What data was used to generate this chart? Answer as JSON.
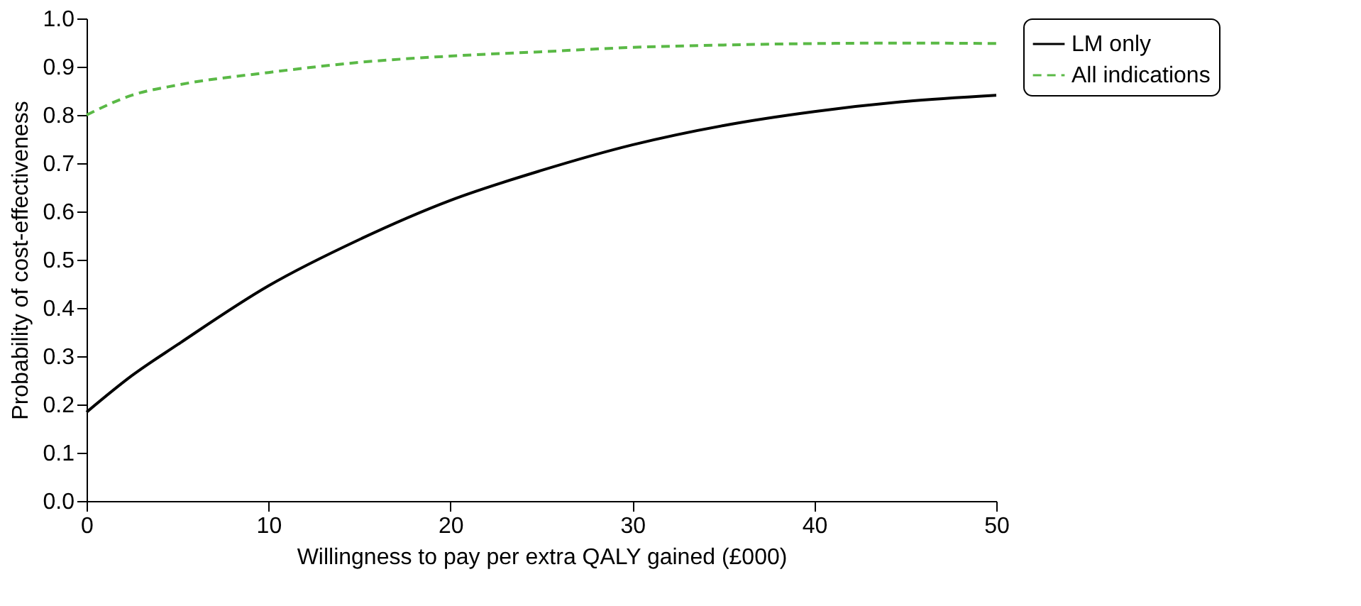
{
  "chart_data": {
    "type": "line",
    "xlabel": "Willingness to pay per extra QALY gained (£000)",
    "ylabel": "Probability of cost-effectiveness",
    "xlim": [
      0,
      50
    ],
    "xticks": [
      0,
      10,
      20,
      30,
      40,
      50
    ],
    "ylim": [
      0,
      1
    ],
    "yticks": [
      {
        "value": 0,
        "label": "0.0"
      },
      {
        "value": 0.1,
        "label": "0.1"
      },
      {
        "value": 0.2,
        "label": "0.2"
      },
      {
        "value": 0.3,
        "label": "0.3"
      },
      {
        "value": 0.4,
        "label": "0.4"
      },
      {
        "value": 0.5,
        "label": "0.5"
      },
      {
        "value": 0.6,
        "label": "0.6"
      },
      {
        "value": 0.7,
        "label": "0.7"
      },
      {
        "value": 0.8,
        "label": "0.8"
      },
      {
        "value": 0.9,
        "label": "0.9"
      },
      {
        "value": 1,
        "label": "1.0"
      }
    ],
    "grid": false,
    "legend": "right",
    "marker": "none",
    "series": [
      {
        "name": "LM only",
        "color": "#000000",
        "line_style": "solid",
        "x": [
          0,
          2.5,
          5,
          10,
          15,
          20,
          25,
          30,
          35,
          40,
          45,
          50
        ],
        "values": [
          0.184,
          0.26,
          0.324,
          0.446,
          0.542,
          0.623,
          0.685,
          0.738,
          0.778,
          0.807,
          0.828,
          0.841
        ]
      },
      {
        "name": "All indications",
        "color": "#5ab946",
        "line_style": "dashed",
        "x": [
          0,
          2.5,
          5,
          10,
          15,
          20,
          25,
          30,
          35,
          40,
          45,
          50
        ],
        "values": [
          0.8,
          0.841,
          0.862,
          0.888,
          0.909,
          0.922,
          0.931,
          0.94,
          0.945,
          0.948,
          0.949,
          0.948
        ]
      }
    ]
  }
}
